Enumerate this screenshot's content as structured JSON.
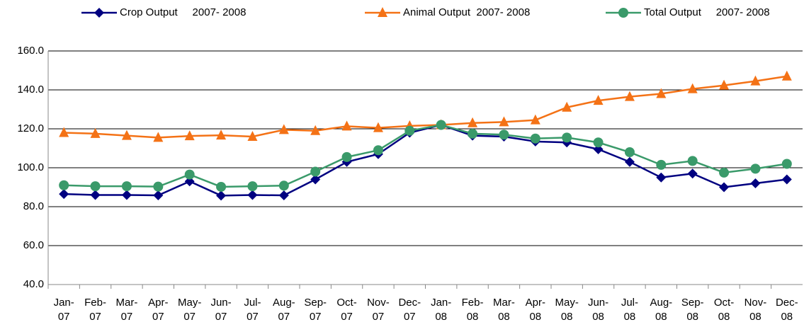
{
  "chart_data": {
    "type": "line",
    "categories": [
      "Jan-07",
      "Feb-07",
      "Mar-07",
      "Apr-07",
      "May-07",
      "Jun-07",
      "Jul-07",
      "Aug-07",
      "Sep-07",
      "Oct-07",
      "Nov-07",
      "Dec-07",
      "Jan-08",
      "Feb-08",
      "Mar-08",
      "Apr-08",
      "May-08",
      "Jun-08",
      "Jul-08",
      "Aug-08",
      "Sep-08",
      "Oct-08",
      "Nov-08",
      "Dec-08"
    ],
    "series": [
      {
        "name": "Crop Output     2007- 2008",
        "color": "#000080",
        "marker": "diamond",
        "values": [
          86.5,
          86,
          86,
          85.8,
          93,
          85.7,
          86,
          85.8,
          94,
          103,
          107,
          118,
          122,
          116.5,
          116,
          113.5,
          113,
          109.5,
          103,
          95,
          97,
          90,
          92,
          94
        ]
      },
      {
        "name": "Animal Output  2007- 2008",
        "color": "#f47216",
        "marker": "triangle",
        "values": [
          118,
          117.5,
          116.5,
          115.5,
          116.3,
          116.7,
          116,
          119.5,
          119,
          121.3,
          120.5,
          121.5,
          122,
          123,
          123.5,
          124.5,
          131,
          134.5,
          136.5,
          138,
          140.5,
          142.3,
          144.5,
          147
        ]
      },
      {
        "name": "Total Output     2007- 2008",
        "color": "#3a9a6a",
        "marker": "circle",
        "values": [
          91,
          90.5,
          90.5,
          90.3,
          96.5,
          90.2,
          90.5,
          90.8,
          98,
          105.5,
          109,
          119,
          122,
          117.5,
          117,
          115,
          115.5,
          113,
          108,
          101.5,
          103.5,
          97.5,
          99.5,
          102
        ]
      }
    ],
    "ylim": [
      40,
      160
    ],
    "yticks": [
      {
        "value": 40,
        "label": "40.0"
      },
      {
        "value": 60,
        "label": "60.0"
      },
      {
        "value": 80,
        "label": "80.0"
      },
      {
        "value": 100,
        "label": "100.0"
      },
      {
        "value": 120,
        "label": "120.0"
      },
      {
        "value": 140,
        "label": "140.0"
      },
      {
        "value": 160,
        "label": "160.0"
      }
    ],
    "grid": true,
    "legend": "top"
  }
}
